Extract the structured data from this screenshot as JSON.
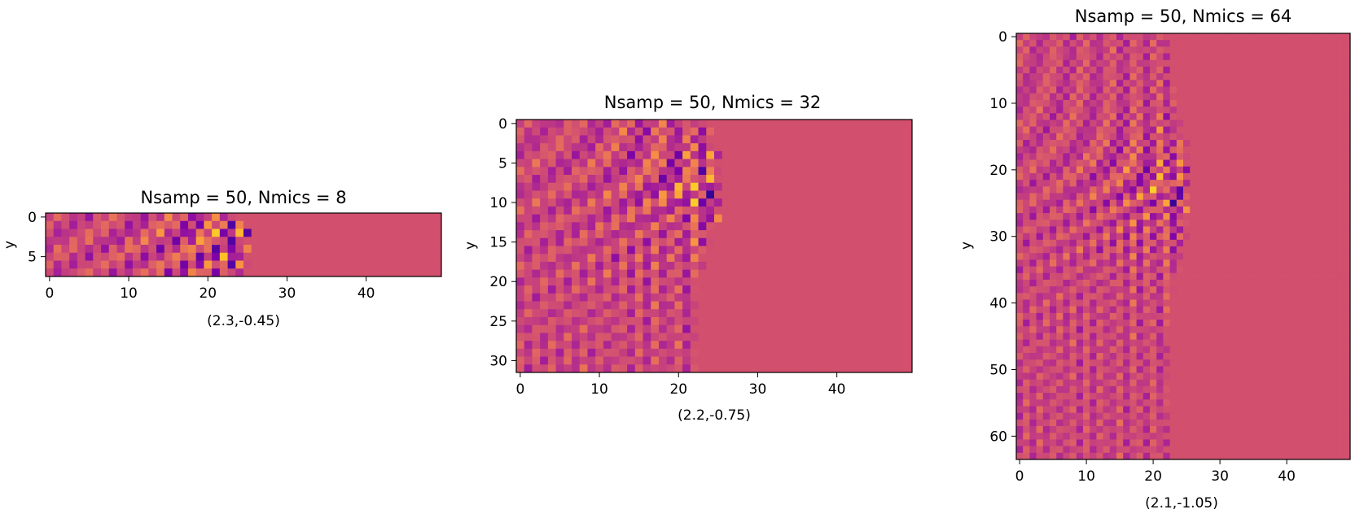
{
  "figure": {
    "colormap": "plasma",
    "colors": {
      "background": "#d24f6e",
      "low": "#0d0887",
      "mid": "#cc4778",
      "high": "#f0f921"
    }
  },
  "chart_data": [
    {
      "type": "heatmap",
      "title": "Nsamp = 50, Nmics = 8",
      "xlabel": "(2.3,-0.45)",
      "ylabel": "y",
      "xlim": [
        -0.5,
        49.5
      ],
      "ylim": [
        7.5,
        -0.5
      ],
      "xticks": [
        0,
        10,
        20,
        30,
        40
      ],
      "yticks": [
        0,
        5
      ],
      "grid": false,
      "n_rows": 8,
      "n_cols": 50,
      "wavefront_edge_col": 24,
      "wave_focus": [
        23,
        3.5
      ]
    },
    {
      "type": "heatmap",
      "title": "Nsamp = 50, Nmics = 32",
      "xlabel": "(2.2,-0.75)",
      "ylabel": "y",
      "xlim": [
        -0.5,
        49.5
      ],
      "ylim": [
        31.5,
        -0.5
      ],
      "xticks": [
        0,
        10,
        20,
        30,
        40
      ],
      "yticks": [
        0,
        5,
        10,
        15,
        20,
        25,
        30
      ],
      "grid": false,
      "n_rows": 32,
      "n_cols": 50,
      "wavefront_edge_col": 24,
      "wave_focus": [
        22,
        8
      ]
    },
    {
      "type": "heatmap",
      "title": "Nsamp = 50, Nmics = 64",
      "xlabel": "(2.1,-1.05)",
      "ylabel": "y",
      "xlim": [
        -0.5,
        49.5
      ],
      "ylim": [
        63.5,
        -0.5
      ],
      "xticks": [
        0,
        10,
        20,
        30,
        40
      ],
      "yticks": [
        0,
        10,
        20,
        30,
        40,
        50,
        60
      ],
      "grid": false,
      "n_rows": 64,
      "n_cols": 50,
      "wavefront_edge_col": 24,
      "wave_focus": [
        22,
        23
      ]
    }
  ]
}
